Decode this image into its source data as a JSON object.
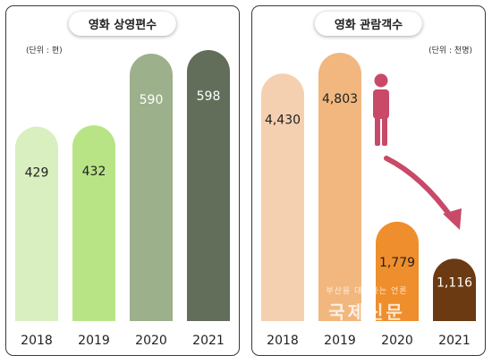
{
  "chart_data": [
    {
      "type": "bar",
      "title": "영화 상영편수",
      "unit": "(단위 : 편)",
      "categories": [
        "2018",
        "2019",
        "2020",
        "2021"
      ],
      "values": [
        429,
        432,
        590,
        598
      ],
      "labels": [
        "429",
        "432",
        "590",
        "598"
      ],
      "colors": [
        "#d9efc0",
        "#b8e486",
        "#9cb08c",
        "#626e5a"
      ],
      "label_colors": [
        "#222222",
        "#222222",
        "#ffffff",
        "#ffffff"
      ],
      "grid": false
    },
    {
      "type": "bar",
      "title": "영화 관람객수",
      "unit": "(단위 : 천명)",
      "categories": [
        "2018",
        "2019",
        "2020",
        "2021"
      ],
      "values": [
        4430,
        4803,
        1779,
        1116
      ],
      "labels": [
        "4,430",
        "4,803",
        "1,779",
        "1,116"
      ],
      "colors": [
        "#f5d0b0",
        "#f1b77e",
        "#ef8e2c",
        "#6b3a12"
      ],
      "label_colors": [
        "#222222",
        "#222222",
        "#222222",
        "#ffffff"
      ],
      "grid": false
    }
  ],
  "decorations": {
    "person_icon": "person-icon",
    "decline_arrow": "curved-arrow-down-icon",
    "accent_color": "#c84a68"
  },
  "watermark": {
    "line1": "부산을 대표하는 언론",
    "line2": "국제신문"
  }
}
